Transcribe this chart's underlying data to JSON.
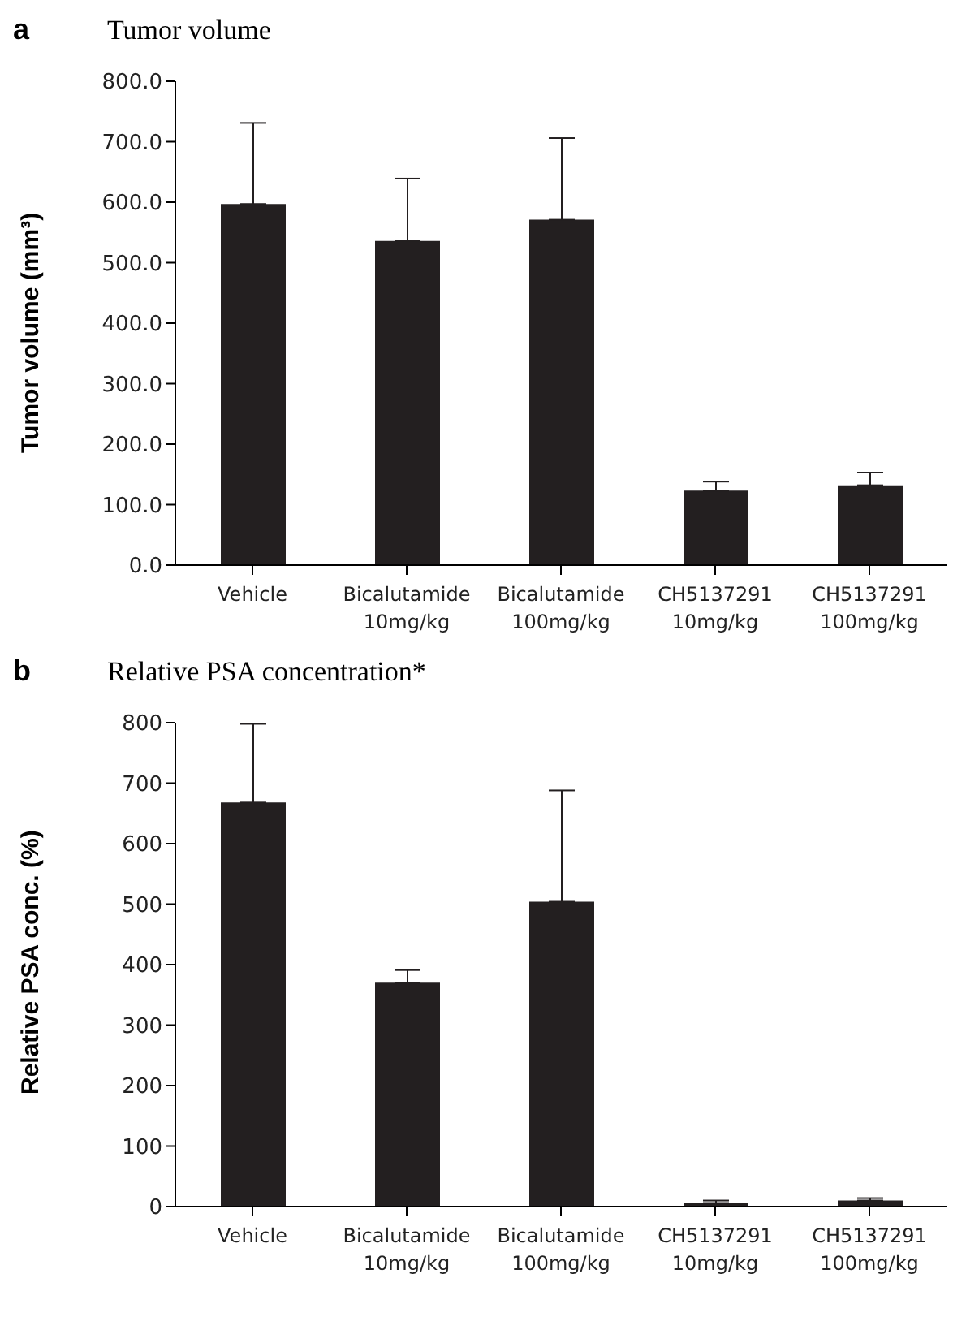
{
  "chart_data": [
    {
      "type": "bar",
      "title": "Tumor volume",
      "annotations": [
        "a"
      ],
      "ylabel": "Tumor volume (mm³)",
      "categories": [
        "Vehicle",
        "Bicalutamide\n10mg/kg",
        "Bicalutamide\n100mg/kg",
        "CH5137291\n10mg/kg",
        "CH5137291\n100mg/kg"
      ],
      "values": [
        597,
        536,
        571,
        123,
        132
      ],
      "errors": [
        [
          597,
          731
        ],
        [
          536,
          639
        ],
        [
          571,
          706
        ],
        [
          123,
          138
        ],
        [
          132,
          153
        ]
      ],
      "color": "#231f20",
      "ylim": [
        0,
        800
      ],
      "yticks": [
        {
          "value": 0,
          "label": "0.0"
        },
        {
          "value": 100,
          "label": "100.0"
        },
        {
          "value": 200,
          "label": "200.0"
        },
        {
          "value": 300,
          "label": "300.0"
        },
        {
          "value": 400,
          "label": "400.0"
        },
        {
          "value": 500,
          "label": "500.0"
        },
        {
          "value": 600,
          "label": "600.0"
        },
        {
          "value": 700,
          "label": "700.0"
        },
        {
          "value": 800,
          "label": "800.0"
        }
      ],
      "grid": false,
      "legend": false
    },
    {
      "type": "bar",
      "title": "Relative PSA concentration*",
      "annotations": [
        "b"
      ],
      "ylabel": "Relative PSA conc. (%)",
      "categories": [
        "Vehicle",
        "Bicalutamide\n10mg/kg",
        "Bicalutamide\n100mg/kg",
        "CH5137291\n10mg/kg",
        "CH5137291\n100mg/kg"
      ],
      "values": [
        668,
        370,
        504,
        6,
        10
      ],
      "errors": [
        [
          668,
          798
        ],
        [
          370,
          391
        ],
        [
          504,
          688
        ],
        [
          6,
          10
        ],
        [
          10,
          14
        ]
      ],
      "color": "#231f20",
      "ylim": [
        0,
        800
      ],
      "yticks": [
        0,
        100,
        200,
        300,
        400,
        500,
        600,
        700,
        800
      ],
      "grid": false,
      "legend": false
    }
  ]
}
